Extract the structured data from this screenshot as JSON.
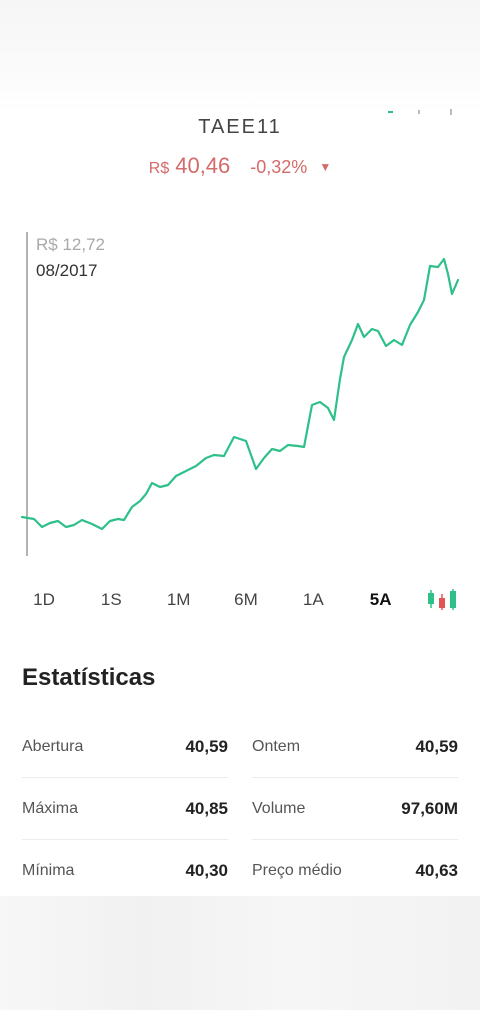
{
  "quote": {
    "ticker": "TAEE11",
    "currency": "R$",
    "price": "40,46",
    "change": "-0,32%",
    "direction_icon": "triangle-down-icon",
    "negative_color": "#d46a6a"
  },
  "chart": {
    "hover_price": "R$ 12,72",
    "hover_date": "08/2017",
    "line_color": "#2fc08a"
  },
  "ranges": [
    "1D",
    "1S",
    "1M",
    "6M",
    "1A",
    "5A"
  ],
  "active_range": "5A",
  "candle_icon": "candlestick-chart-icon",
  "stats": {
    "title": "Estatísticas",
    "rows": [
      [
        {
          "label": "Abertura",
          "value": "40,59"
        },
        {
          "label": "Ontem",
          "value": "40,59"
        }
      ],
      [
        {
          "label": "Máxima",
          "value": "40,85"
        },
        {
          "label": "Volume",
          "value": "97,60M"
        }
      ],
      [
        {
          "label": "Mínima",
          "value": "40,30"
        },
        {
          "label": "Preço médio",
          "value": "40,63"
        }
      ]
    ]
  }
}
